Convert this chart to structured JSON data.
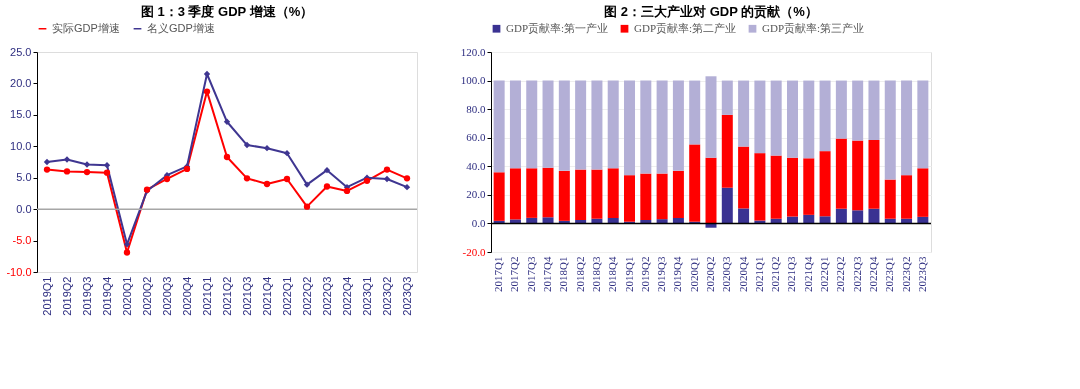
{
  "chart_data": [
    {
      "type": "line",
      "title": "图 1：3 季度 GDP 增速（%）",
      "categories": [
        "2019Q1",
        "2019Q2",
        "2019Q3",
        "2019Q4",
        "2020Q1",
        "2020Q2",
        "2020Q3",
        "2020Q4",
        "2021Q1",
        "2021Q2",
        "2021Q3",
        "2021Q4",
        "2022Q1",
        "2022Q2",
        "2022Q3",
        "2022Q4",
        "2023Q1",
        "2023Q2",
        "2023Q3"
      ],
      "series": [
        {
          "name": "实际GDP增速",
          "color": "#ff0000",
          "marker": "circle",
          "values": [
            6.3,
            6.0,
            5.9,
            5.8,
            -6.9,
            3.1,
            4.8,
            6.4,
            18.7,
            8.3,
            4.9,
            4.0,
            4.8,
            0.4,
            3.6,
            2.9,
            4.5,
            6.3,
            4.9
          ]
        },
        {
          "name": "名义GDP增速",
          "color": "#3f3691",
          "marker": "diamond",
          "values": [
            7.5,
            7.9,
            7.1,
            7.0,
            -5.6,
            2.9,
            5.4,
            6.8,
            21.5,
            13.9,
            10.2,
            9.7,
            8.9,
            3.9,
            6.2,
            3.5,
            5.0,
            4.8,
            3.5
          ]
        }
      ],
      "ylim": [
        -10,
        25
      ],
      "yticks": [
        {
          "value": -10,
          "label": "-10.0"
        },
        {
          "value": -5,
          "label": "-5.0"
        },
        {
          "value": 0,
          "label": "0.0"
        },
        {
          "value": 5,
          "label": "5.0"
        },
        {
          "value": 10,
          "label": "10.0"
        },
        {
          "value": 15,
          "label": "15.0"
        },
        {
          "value": 20,
          "label": "20.0"
        },
        {
          "value": 25,
          "label": "25.0"
        }
      ],
      "ref_lines": [
        {
          "axis": "y",
          "value": 0,
          "color": "#a6a6a6"
        }
      ],
      "grid": false,
      "legend": "top",
      "line_style": "solid"
    },
    {
      "type": "bar",
      "title": "图 2：三大产业对 GDP 的贡献（%）",
      "stacked": true,
      "categories": [
        "2017Q1",
        "2017Q2",
        "2017Q3",
        "2017Q4",
        "2018Q1",
        "2018Q2",
        "2018Q3",
        "2018Q4",
        "2019Q1",
        "2019Q2",
        "2019Q3",
        "2019Q4",
        "2020Q1",
        "2020Q2",
        "2020Q3",
        "2020Q4",
        "2021Q1",
        "2021Q2",
        "2021Q3",
        "2021Q4",
        "2022Q1",
        "2022Q2",
        "2022Q3",
        "2022Q4",
        "2023Q1",
        "2023Q2",
        "2023Q3"
      ],
      "series": [
        {
          "name": "GDP贡献率:第一产业",
          "color": "#3a3292",
          "values": [
            1.8,
            2.8,
            3.9,
            4.3,
            1.8,
            2.4,
            3.3,
            3.8,
            1.2,
            2.4,
            3.0,
            3.8,
            1.2,
            -3.0,
            25.0,
            10.5,
            2.0,
            3.3,
            4.8,
            6.0,
            5.0,
            10.3,
            9.2,
            10.3,
            3.3,
            3.3,
            4.6
          ]
        },
        {
          "name": "GDP贡献率:第二产业",
          "color": "#ff0000",
          "values": [
            34.0,
            35.8,
            34.7,
            34.7,
            35.0,
            35.3,
            34.4,
            34.8,
            32.6,
            32.5,
            31.9,
            33.0,
            54.1,
            46.0,
            51.0,
            43.3,
            47.2,
            44.2,
            41.2,
            39.6,
            45.6,
            49.1,
            48.8,
            48.1,
            27.4,
            30.5,
            34.0
          ]
        },
        {
          "name": "GDP贡献率:第三产业",
          "color": "#b3afd6",
          "values": [
            64.2,
            61.4,
            61.4,
            61.0,
            63.2,
            62.3,
            62.3,
            61.4,
            66.2,
            65.1,
            65.1,
            63.2,
            44.7,
            57.0,
            24.0,
            46.2,
            50.8,
            52.5,
            54.0,
            54.4,
            49.4,
            40.6,
            42.0,
            41.6,
            69.3,
            66.2,
            61.4
          ]
        }
      ],
      "ylim": [
        -20,
        120
      ],
      "yticks": [
        {
          "value": -20,
          "label": "-20.0"
        },
        {
          "value": 0,
          "label": "0.0"
        },
        {
          "value": 20,
          "label": "20.0"
        },
        {
          "value": 40,
          "label": "40.0"
        },
        {
          "value": 60,
          "label": "60.0"
        },
        {
          "value": 80,
          "label": "80.0"
        },
        {
          "value": 100,
          "label": "100.0"
        },
        {
          "value": 120,
          "label": "120.0"
        }
      ],
      "ref_lines": [
        {
          "axis": "y",
          "value": 0,
          "color": "#000000"
        }
      ],
      "grid": "y",
      "legend": "top"
    }
  ]
}
